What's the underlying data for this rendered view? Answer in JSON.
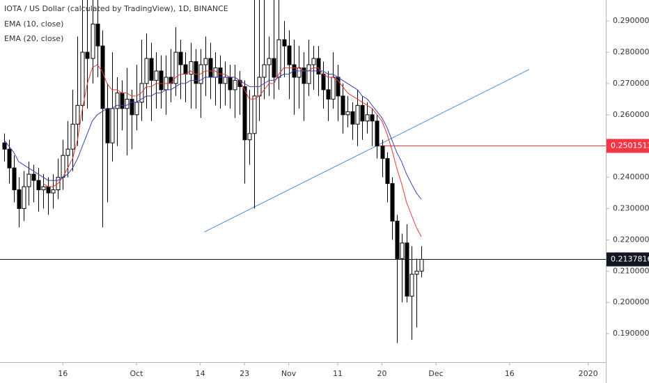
{
  "chart_data": {
    "type": "candlestick",
    "title": "IOTA / US Dollar (calculated by TradingView), 1D, BINANCE",
    "x": [
      -12,
      -11,
      -10,
      -9,
      -8,
      -7,
      -6,
      -5,
      -4,
      -3,
      -2,
      -1,
      0,
      1,
      2,
      3,
      4,
      5,
      6,
      7,
      8,
      9,
      10,
      11,
      12,
      13,
      14,
      15,
      16,
      17,
      18,
      19,
      20,
      21,
      22,
      23,
      24,
      25,
      26,
      27,
      28,
      29,
      30,
      31,
      32,
      33,
      34,
      35,
      36,
      37,
      38,
      39,
      40,
      41,
      42,
      43,
      44,
      45,
      46,
      47,
      48,
      49,
      50,
      51,
      52,
      53,
      54,
      55,
      56,
      57,
      58,
      59,
      60,
      61,
      62,
      63,
      64,
      65,
      66,
      67,
      68,
      69,
      70,
      71,
      72,
      73
    ],
    "candles": [
      [
        0.251,
        0.254,
        0.245,
        0.249
      ],
      [
        0.249,
        0.252,
        0.238,
        0.243
      ],
      [
        0.243,
        0.247,
        0.232,
        0.236
      ],
      [
        0.236,
        0.24,
        0.224,
        0.23
      ],
      [
        0.23,
        0.242,
        0.226,
        0.237
      ],
      [
        0.237,
        0.245,
        0.231,
        0.241
      ],
      [
        0.241,
        0.244,
        0.232,
        0.239
      ],
      [
        0.239,
        0.243,
        0.229,
        0.236
      ],
      [
        0.236,
        0.241,
        0.23,
        0.237
      ],
      [
        0.237,
        0.24,
        0.228,
        0.235
      ],
      [
        0.235,
        0.241,
        0.23,
        0.236
      ],
      [
        0.236,
        0.246,
        0.233,
        0.24
      ],
      [
        0.24,
        0.252,
        0.236,
        0.247
      ],
      [
        0.247,
        0.258,
        0.24,
        0.249
      ],
      [
        0.249,
        0.268,
        0.242,
        0.257
      ],
      [
        0.257,
        0.285,
        0.25,
        0.263
      ],
      [
        0.263,
        0.3,
        0.258,
        0.28
      ],
      [
        0.28,
        0.3,
        0.262,
        0.278
      ],
      [
        0.278,
        0.3,
        0.27,
        0.289
      ],
      [
        0.289,
        0.3,
        0.272,
        0.282
      ],
      [
        0.282,
        0.287,
        0.224,
        0.262
      ],
      [
        0.262,
        0.27,
        0.232,
        0.251
      ],
      [
        0.251,
        0.28,
        0.245,
        0.262
      ],
      [
        0.262,
        0.272,
        0.25,
        0.267
      ],
      [
        0.267,
        0.271,
        0.255,
        0.262
      ],
      [
        0.262,
        0.275,
        0.247,
        0.265
      ],
      [
        0.265,
        0.268,
        0.249,
        0.26
      ],
      [
        0.26,
        0.276,
        0.255,
        0.264
      ],
      [
        0.264,
        0.284,
        0.258,
        0.27
      ],
      [
        0.27,
        0.286,
        0.262,
        0.278
      ],
      [
        0.278,
        0.283,
        0.258,
        0.271
      ],
      [
        0.271,
        0.28,
        0.262,
        0.274
      ],
      [
        0.274,
        0.279,
        0.262,
        0.268
      ],
      [
        0.268,
        0.279,
        0.26,
        0.272
      ],
      [
        0.272,
        0.281,
        0.264,
        0.27
      ],
      [
        0.27,
        0.288,
        0.266,
        0.28
      ],
      [
        0.28,
        0.284,
        0.265,
        0.276
      ],
      [
        0.276,
        0.28,
        0.264,
        0.273
      ],
      [
        0.273,
        0.283,
        0.262,
        0.277
      ],
      [
        0.277,
        0.281,
        0.262,
        0.27
      ],
      [
        0.27,
        0.281,
        0.259,
        0.276
      ],
      [
        0.276,
        0.285,
        0.266,
        0.278
      ],
      [
        0.278,
        0.283,
        0.265,
        0.272
      ],
      [
        0.272,
        0.28,
        0.263,
        0.275
      ],
      [
        0.275,
        0.279,
        0.262,
        0.27
      ],
      [
        0.27,
        0.277,
        0.263,
        0.272
      ],
      [
        0.272,
        0.276,
        0.262,
        0.268
      ],
      [
        0.268,
        0.276,
        0.259,
        0.271
      ],
      [
        0.271,
        0.274,
        0.26,
        0.269
      ],
      [
        0.269,
        0.271,
        0.238,
        0.252
      ],
      [
        0.252,
        0.268,
        0.244,
        0.254
      ],
      [
        0.254,
        0.3,
        0.23,
        0.266
      ],
      [
        0.266,
        0.3,
        0.258,
        0.272
      ],
      [
        0.272,
        0.3,
        0.265,
        0.276
      ],
      [
        0.276,
        0.285,
        0.266,
        0.278
      ],
      [
        0.278,
        0.3,
        0.265,
        0.272
      ],
      [
        0.272,
        0.3,
        0.268,
        0.284
      ],
      [
        0.284,
        0.29,
        0.272,
        0.282
      ],
      [
        0.282,
        0.287,
        0.265,
        0.276
      ],
      [
        0.276,
        0.284,
        0.26,
        0.272
      ],
      [
        0.272,
        0.282,
        0.262,
        0.275
      ],
      [
        0.275,
        0.28,
        0.258,
        0.27
      ],
      [
        0.27,
        0.284,
        0.266,
        0.276
      ],
      [
        0.276,
        0.282,
        0.268,
        0.278
      ],
      [
        0.278,
        0.282,
        0.266,
        0.273
      ],
      [
        0.273,
        0.277,
        0.262,
        0.268
      ],
      [
        0.268,
        0.274,
        0.258,
        0.265
      ],
      [
        0.265,
        0.28,
        0.262,
        0.272
      ],
      [
        0.272,
        0.276,
        0.258,
        0.266
      ],
      [
        0.266,
        0.27,
        0.254,
        0.26
      ],
      [
        0.26,
        0.266,
        0.256,
        0.261
      ],
      [
        0.261,
        0.264,
        0.252,
        0.257
      ],
      [
        0.257,
        0.268,
        0.25,
        0.263
      ],
      [
        0.263,
        0.266,
        0.252,
        0.258
      ],
      [
        0.258,
        0.264,
        0.254,
        0.26
      ],
      [
        0.26,
        0.262,
        0.25,
        0.258
      ],
      [
        0.258,
        0.26,
        0.246,
        0.25
      ],
      [
        0.25,
        0.252,
        0.24,
        0.246
      ],
      [
        0.246,
        0.248,
        0.232,
        0.238
      ],
      [
        0.238,
        0.24,
        0.22,
        0.226
      ],
      [
        0.226,
        0.228,
        0.187,
        0.214
      ],
      [
        0.214,
        0.222,
        0.2,
        0.219
      ],
      [
        0.219,
        0.225,
        0.2,
        0.202
      ],
      [
        0.202,
        0.218,
        0.188,
        0.209
      ],
      [
        0.209,
        0.214,
        0.192,
        0.21
      ],
      [
        0.21,
        0.218,
        0.208,
        0.21378166
      ]
    ],
    "series": [
      {
        "name": "EMA (10, close)",
        "color": "#e53935",
        "values": [
          null,
          null,
          null,
          null,
          null,
          null,
          null,
          null,
          0.238,
          0.237,
          0.237,
          0.238,
          0.24,
          0.243,
          0.246,
          0.252,
          0.262,
          0.27,
          0.275,
          0.276,
          0.274,
          0.27,
          0.268,
          0.268,
          0.267,
          0.267,
          0.266,
          0.266,
          0.267,
          0.269,
          0.269,
          0.27,
          0.27,
          0.27,
          0.27,
          0.272,
          0.273,
          0.273,
          0.274,
          0.273,
          0.273,
          0.274,
          0.274,
          0.274,
          0.273,
          0.273,
          0.272,
          0.272,
          0.271,
          0.268,
          0.265,
          0.265,
          0.266,
          0.268,
          0.27,
          0.27,
          0.273,
          0.275,
          0.275,
          0.275,
          0.275,
          0.274,
          0.274,
          0.275,
          0.275,
          0.273,
          0.272,
          0.272,
          0.271,
          0.269,
          0.267,
          0.266,
          0.265,
          0.264,
          0.263,
          0.262,
          0.26,
          0.258,
          0.254,
          0.249,
          0.243,
          0.238,
          0.232,
          0.228,
          0.224,
          0.221
        ]
      },
      {
        "name": "EMA (20, close)",
        "color": "#3f3fb5",
        "values": [
          0.252,
          0.25,
          0.248,
          0.245,
          0.244,
          0.243,
          0.242,
          0.241,
          0.24,
          0.239,
          0.239,
          0.239,
          0.24,
          0.241,
          0.243,
          0.246,
          0.25,
          0.254,
          0.258,
          0.26,
          0.261,
          0.262,
          0.262,
          0.263,
          0.263,
          0.263,
          0.264,
          0.264,
          0.265,
          0.266,
          0.266,
          0.267,
          0.267,
          0.268,
          0.268,
          0.269,
          0.27,
          0.27,
          0.271,
          0.271,
          0.271,
          0.272,
          0.272,
          0.272,
          0.272,
          0.272,
          0.272,
          0.272,
          0.271,
          0.27,
          0.269,
          0.269,
          0.269,
          0.27,
          0.271,
          0.271,
          0.272,
          0.273,
          0.273,
          0.274,
          0.274,
          0.274,
          0.274,
          0.274,
          0.274,
          0.274,
          0.273,
          0.273,
          0.272,
          0.271,
          0.27,
          0.269,
          0.268,
          0.266,
          0.265,
          0.263,
          0.261,
          0.259,
          0.256,
          0.252,
          0.248,
          0.245,
          0.241,
          0.238,
          0.235,
          0.233
        ]
      }
    ],
    "trendline": {
      "x": [
        28.8,
        95
      ],
      "values": [
        0.2225,
        0.2745
      ],
      "color": "#4a8fe0"
    },
    "price_lines": [
      {
        "value": 0.25015134,
        "color": "#f23645",
        "x_start": 63.8
      },
      {
        "value": 0.21378166,
        "color": "#131722",
        "x_start": -12.8
      }
    ],
    "xlim": [
      -12.8,
      110.6
    ],
    "ylim": [
      0.1809,
      0.2967
    ],
    "xticks": [
      {
        "value": 0,
        "label": "16"
      },
      {
        "value": 15,
        "label": "Oct"
      },
      {
        "value": 28,
        "label": "14"
      },
      {
        "value": 37,
        "label": "23"
      },
      {
        "value": 46,
        "label": "Nov"
      },
      {
        "value": 56,
        "label": "11"
      },
      {
        "value": 65,
        "label": "20"
      },
      {
        "value": 76,
        "label": "Dec"
      },
      {
        "value": 91,
        "label": "16"
      },
      {
        "value": 107,
        "label": "2020"
      }
    ],
    "yticks": [
      {
        "value": 0.19,
        "label": "0.19000000"
      },
      {
        "value": 0.2,
        "label": "0.20000000"
      },
      {
        "value": 0.21,
        "label": "0.21000000"
      },
      {
        "value": 0.22,
        "label": "0.22000000"
      },
      {
        "value": 0.23,
        "label": "0.23000000"
      },
      {
        "value": 0.24,
        "label": "0.24000000"
      },
      {
        "value": 0.26,
        "label": "0.26000000"
      },
      {
        "value": 0.27,
        "label": "0.27000000"
      },
      {
        "value": 0.28,
        "label": "0.28000000"
      },
      {
        "value": 0.29,
        "label": "0.29000000"
      }
    ]
  }
}
